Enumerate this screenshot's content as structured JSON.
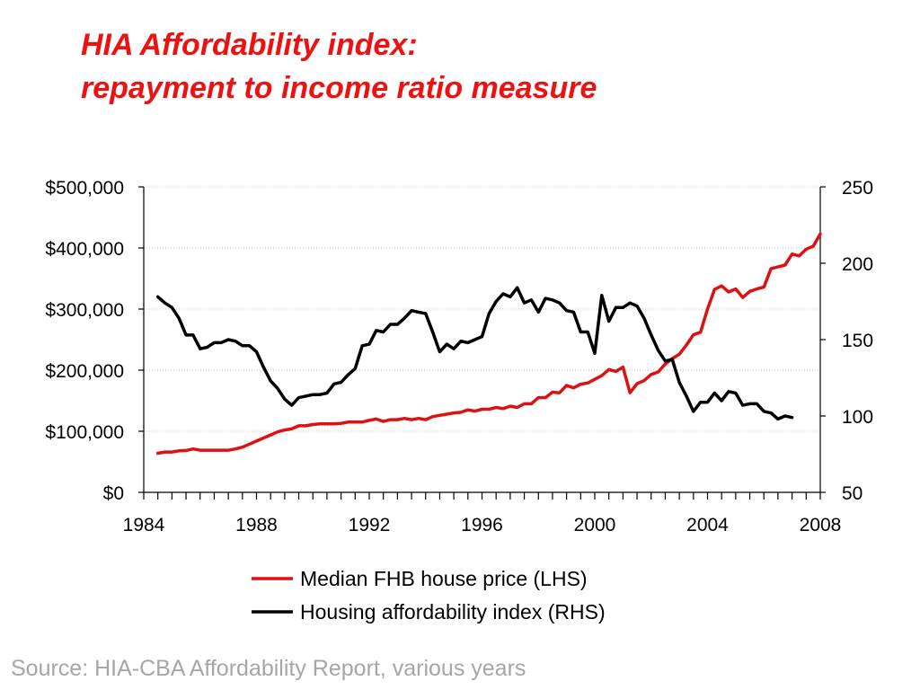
{
  "title": {
    "line1": "HIA Affordability index:",
    "line2": "repayment to income ratio measure"
  },
  "source": "Source: HIA-CBA Affordability Report, various years",
  "colors": {
    "title": "#ee1111",
    "series_price": "#dd1111",
    "series_index": "#000000",
    "source": "#a6a6a6",
    "gridline": "#bfbfbf"
  },
  "chart_data": {
    "type": "line",
    "x_axis": {
      "min": 1984,
      "max": 2008,
      "tick_labels": [
        "1984",
        "1988",
        "1992",
        "1996",
        "2000",
        "2004",
        "2008"
      ],
      "minor_ticks_per_year": 2
    },
    "y_left": {
      "min": 0,
      "max": 500000,
      "tick_values": [
        0,
        100000,
        200000,
        300000,
        400000,
        500000
      ],
      "tick_labels": [
        "$0",
        "$100,000",
        "$200,000",
        "$300,000",
        "$400,000",
        "$500,000"
      ]
    },
    "y_right": {
      "min": 50,
      "max": 250,
      "tick_values": [
        50,
        100,
        150,
        200,
        250
      ],
      "tick_labels": [
        "50",
        "100",
        "150",
        "200",
        "250"
      ]
    },
    "grid": true,
    "legend_position": "bottom",
    "series": [
      {
        "name": "Median FHB house price (LHS)",
        "axis": "left",
        "points": [
          [
            1984.5,
            64000
          ],
          [
            1984.75,
            66000
          ],
          [
            1985.0,
            66000
          ],
          [
            1985.25,
            68000
          ],
          [
            1985.5,
            68500
          ],
          [
            1985.75,
            71000
          ],
          [
            1986.0,
            69000
          ],
          [
            1986.25,
            69000
          ],
          [
            1986.5,
            69000
          ],
          [
            1986.75,
            69000
          ],
          [
            1987.0,
            69000
          ],
          [
            1987.25,
            71000
          ],
          [
            1987.5,
            74000
          ],
          [
            1987.75,
            79000
          ],
          [
            1988.0,
            84000
          ],
          [
            1988.25,
            89000
          ],
          [
            1988.5,
            94000
          ],
          [
            1988.75,
            99000
          ],
          [
            1989.0,
            102000
          ],
          [
            1989.25,
            104000
          ],
          [
            1989.5,
            109000
          ],
          [
            1989.75,
            109000
          ],
          [
            1990.0,
            111000
          ],
          [
            1990.25,
            112000
          ],
          [
            1990.5,
            112000
          ],
          [
            1990.75,
            112000
          ],
          [
            1991.0,
            113000
          ],
          [
            1991.25,
            115000
          ],
          [
            1991.5,
            115000
          ],
          [
            1991.75,
            115000
          ],
          [
            1992.0,
            118000
          ],
          [
            1992.25,
            120000
          ],
          [
            1992.5,
            116000
          ],
          [
            1992.75,
            119000
          ],
          [
            1993.0,
            119000
          ],
          [
            1993.25,
            121000
          ],
          [
            1993.5,
            119000
          ],
          [
            1993.75,
            121000
          ],
          [
            1994.0,
            119000
          ],
          [
            1994.25,
            124000
          ],
          [
            1994.5,
            126000
          ],
          [
            1994.75,
            128000
          ],
          [
            1995.0,
            130000
          ],
          [
            1995.25,
            131000
          ],
          [
            1995.5,
            135000
          ],
          [
            1995.75,
            133000
          ],
          [
            1996.0,
            136000
          ],
          [
            1996.25,
            136000
          ],
          [
            1996.5,
            139000
          ],
          [
            1996.75,
            137000
          ],
          [
            1997.0,
            141000
          ],
          [
            1997.25,
            139000
          ],
          [
            1997.5,
            145000
          ],
          [
            1997.75,
            145000
          ],
          [
            1998.0,
            155000
          ],
          [
            1998.25,
            155000
          ],
          [
            1998.5,
            164000
          ],
          [
            1998.75,
            163000
          ],
          [
            1999.0,
            175000
          ],
          [
            1999.25,
            171000
          ],
          [
            1999.5,
            177000
          ],
          [
            1999.75,
            179000
          ],
          [
            2000.0,
            185000
          ],
          [
            2000.25,
            191000
          ],
          [
            2000.5,
            201000
          ],
          [
            2000.75,
            198000
          ],
          [
            2001.0,
            205000
          ],
          [
            2001.25,
            163000
          ],
          [
            2001.5,
            178000
          ],
          [
            2001.75,
            183000
          ],
          [
            2002.0,
            193000
          ],
          [
            2002.25,
            197000
          ],
          [
            2002.5,
            210000
          ],
          [
            2002.75,
            219000
          ],
          [
            2003.0,
            226000
          ],
          [
            2003.25,
            241000
          ],
          [
            2003.5,
            258000
          ],
          [
            2003.75,
            262000
          ],
          [
            2004.0,
            300000
          ],
          [
            2004.25,
            332000
          ],
          [
            2004.5,
            338000
          ],
          [
            2004.75,
            328000
          ],
          [
            2005.0,
            333000
          ],
          [
            2005.25,
            319000
          ],
          [
            2005.5,
            329000
          ],
          [
            2005.75,
            333000
          ],
          [
            2006.0,
            336000
          ],
          [
            2006.25,
            366000
          ],
          [
            2006.5,
            369000
          ],
          [
            2006.75,
            372000
          ],
          [
            2007.0,
            390000
          ],
          [
            2007.25,
            387000
          ],
          [
            2007.5,
            398000
          ],
          [
            2007.75,
            403000
          ],
          [
            2008.0,
            423000
          ]
        ]
      },
      {
        "name": "Housing affordability index (RHS)",
        "axis": "right",
        "points": [
          [
            1984.5,
            178
          ],
          [
            1984.75,
            174
          ],
          [
            1985.0,
            171
          ],
          [
            1985.25,
            164
          ],
          [
            1985.5,
            153
          ],
          [
            1985.75,
            153
          ],
          [
            1986.0,
            144
          ],
          [
            1986.25,
            145
          ],
          [
            1986.5,
            148
          ],
          [
            1986.75,
            148
          ],
          [
            1987.0,
            150
          ],
          [
            1987.25,
            149
          ],
          [
            1987.5,
            146
          ],
          [
            1987.75,
            146
          ],
          [
            1988.0,
            142
          ],
          [
            1988.25,
            132
          ],
          [
            1988.5,
            123
          ],
          [
            1988.75,
            118
          ],
          [
            1989.0,
            111
          ],
          [
            1989.25,
            107
          ],
          [
            1989.5,
            112
          ],
          [
            1989.75,
            113
          ],
          [
            1990.0,
            114
          ],
          [
            1990.25,
            114
          ],
          [
            1990.5,
            115
          ],
          [
            1990.75,
            121
          ],
          [
            1991.0,
            122
          ],
          [
            1991.25,
            127
          ],
          [
            1991.5,
            131
          ],
          [
            1991.75,
            146
          ],
          [
            1992.0,
            147
          ],
          [
            1992.25,
            156
          ],
          [
            1992.5,
            155
          ],
          [
            1992.75,
            160
          ],
          [
            1993.0,
            160
          ],
          [
            1993.25,
            164
          ],
          [
            1993.5,
            169
          ],
          [
            1993.75,
            168
          ],
          [
            1994.0,
            167
          ],
          [
            1994.25,
            155
          ],
          [
            1994.5,
            142
          ],
          [
            1994.75,
            147
          ],
          [
            1995.0,
            144
          ],
          [
            1995.25,
            149
          ],
          [
            1995.5,
            148
          ],
          [
            1995.75,
            150
          ],
          [
            1996.0,
            152
          ],
          [
            1996.25,
            167
          ],
          [
            1996.5,
            175
          ],
          [
            1996.75,
            180
          ],
          [
            1997.0,
            178
          ],
          [
            1997.25,
            184
          ],
          [
            1997.5,
            174
          ],
          [
            1997.75,
            176
          ],
          [
            1998.0,
            168
          ],
          [
            1998.25,
            177
          ],
          [
            1998.5,
            176
          ],
          [
            1998.75,
            174
          ],
          [
            1999.0,
            169
          ],
          [
            1999.25,
            168
          ],
          [
            1999.5,
            155
          ],
          [
            1999.75,
            155
          ],
          [
            2000.0,
            141
          ],
          [
            2000.25,
            179
          ],
          [
            2000.5,
            162
          ],
          [
            2000.75,
            171
          ],
          [
            2001.0,
            171
          ],
          [
            2001.25,
            174
          ],
          [
            2001.5,
            172
          ],
          [
            2001.75,
            164
          ],
          [
            2002.0,
            153
          ],
          [
            2002.25,
            143
          ],
          [
            2002.5,
            136
          ],
          [
            2002.75,
            137
          ],
          [
            2003.0,
            122
          ],
          [
            2003.25,
            113
          ],
          [
            2003.5,
            103
          ],
          [
            2003.75,
            109
          ],
          [
            2004.0,
            109
          ],
          [
            2004.25,
            115
          ],
          [
            2004.5,
            110
          ],
          [
            2004.75,
            116
          ],
          [
            2005.0,
            115
          ],
          [
            2005.25,
            107
          ],
          [
            2005.5,
            108
          ],
          [
            2005.75,
            108
          ],
          [
            2006.0,
            103
          ],
          [
            2006.25,
            102
          ],
          [
            2006.5,
            98
          ],
          [
            2006.75,
            100
          ],
          [
            2007.0,
            99
          ]
        ]
      }
    ]
  }
}
